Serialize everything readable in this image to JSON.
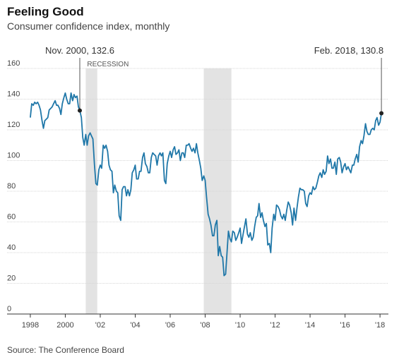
{
  "chart_data": {
    "type": "line",
    "title": "Feeling Good",
    "subtitle": "Consumer confidence index, monthly",
    "source": "Source: The Conference Board",
    "recession_label": "RECESSION",
    "recessions": [
      [
        2001.17,
        2001.83
      ],
      [
        2007.92,
        2009.5
      ]
    ],
    "color": "#1f77a8",
    "x": [
      1998.0,
      1998.08,
      1998.17,
      1998.25,
      1998.33,
      1998.42,
      1998.5,
      1998.58,
      1998.67,
      1998.75,
      1998.83,
      1998.92,
      1999.0,
      1999.08,
      1999.17,
      1999.25,
      1999.33,
      1999.42,
      1999.5,
      1999.58,
      1999.67,
      1999.75,
      1999.83,
      1999.92,
      2000.0,
      2000.08,
      2000.17,
      2000.25,
      2000.33,
      2000.42,
      2000.5,
      2000.58,
      2000.67,
      2000.75,
      2000.83,
      2000.92,
      2001.0,
      2001.08,
      2001.17,
      2001.25,
      2001.33,
      2001.42,
      2001.5,
      2001.58,
      2001.67,
      2001.75,
      2001.83,
      2001.92,
      2002.0,
      2002.08,
      2002.17,
      2002.25,
      2002.33,
      2002.42,
      2002.5,
      2002.58,
      2002.67,
      2002.75,
      2002.83,
      2002.92,
      2003.0,
      2003.08,
      2003.17,
      2003.25,
      2003.33,
      2003.42,
      2003.5,
      2003.58,
      2003.67,
      2003.75,
      2003.83,
      2003.92,
      2004.0,
      2004.08,
      2004.17,
      2004.25,
      2004.33,
      2004.42,
      2004.5,
      2004.58,
      2004.67,
      2004.75,
      2004.83,
      2004.92,
      2005.0,
      2005.08,
      2005.17,
      2005.25,
      2005.33,
      2005.42,
      2005.5,
      2005.58,
      2005.67,
      2005.75,
      2005.83,
      2005.92,
      2006.0,
      2006.08,
      2006.17,
      2006.25,
      2006.33,
      2006.42,
      2006.5,
      2006.58,
      2006.67,
      2006.75,
      2006.83,
      2006.92,
      2007.0,
      2007.08,
      2007.17,
      2007.25,
      2007.33,
      2007.42,
      2007.5,
      2007.58,
      2007.67,
      2007.75,
      2007.83,
      2007.92,
      2008.0,
      2008.08,
      2008.17,
      2008.25,
      2008.33,
      2008.42,
      2008.5,
      2008.58,
      2008.67,
      2008.75,
      2008.83,
      2008.92,
      2009.0,
      2009.08,
      2009.17,
      2009.25,
      2009.33,
      2009.42,
      2009.5,
      2009.58,
      2009.67,
      2009.75,
      2009.83,
      2009.92,
      2010.0,
      2010.08,
      2010.17,
      2010.25,
      2010.33,
      2010.42,
      2010.5,
      2010.58,
      2010.67,
      2010.75,
      2010.83,
      2010.92,
      2011.0,
      2011.08,
      2011.17,
      2011.25,
      2011.33,
      2011.42,
      2011.5,
      2011.58,
      2011.67,
      2011.75,
      2011.83,
      2011.92,
      2012.0,
      2012.08,
      2012.17,
      2012.25,
      2012.33,
      2012.42,
      2012.5,
      2012.58,
      2012.67,
      2012.75,
      2012.83,
      2012.92,
      2013.0,
      2013.08,
      2013.17,
      2013.25,
      2013.33,
      2013.42,
      2013.5,
      2013.58,
      2013.67,
      2013.75,
      2013.83,
      2013.92,
      2014.0,
      2014.08,
      2014.17,
      2014.25,
      2014.33,
      2014.42,
      2014.5,
      2014.58,
      2014.67,
      2014.75,
      2014.83,
      2014.92,
      2015.0,
      2015.08,
      2015.17,
      2015.25,
      2015.33,
      2015.42,
      2015.5,
      2015.58,
      2015.67,
      2015.75,
      2015.83,
      2015.92,
      2016.0,
      2016.08,
      2016.17,
      2016.25,
      2016.33,
      2016.42,
      2016.5,
      2016.58,
      2016.67,
      2016.75,
      2016.83,
      2016.92,
      2017.0,
      2017.08,
      2017.17,
      2017.25,
      2017.33,
      2017.42,
      2017.5,
      2017.58,
      2017.67,
      2017.75,
      2017.83,
      2017.92,
      2018.0,
      2018.08
    ],
    "values": [
      128,
      137,
      136,
      138,
      137,
      138,
      136,
      133,
      126,
      121,
      126,
      127,
      128,
      133,
      134,
      135,
      137,
      139,
      136,
      136,
      134,
      130,
      137,
      141,
      144,
      140,
      137,
      137,
      144,
      139,
      143,
      141,
      142,
      135,
      132.6,
      128,
      115,
      110,
      117,
      110,
      116,
      118,
      116,
      114,
      97,
      85,
      84,
      94,
      97,
      95,
      110,
      108,
      110,
      106,
      97,
      94,
      93,
      79,
      84,
      80,
      79,
      64,
      61,
      81,
      83,
      83,
      77,
      81,
      77,
      81,
      92,
      94,
      97,
      88,
      88,
      93,
      93,
      102,
      105,
      98,
      96,
      92,
      92,
      102,
      105,
      104,
      103,
      97,
      103,
      105,
      103,
      105,
      87,
      85,
      98,
      103,
      106,
      102,
      107,
      109,
      104,
      105,
      107,
      100,
      105,
      105,
      102,
      110,
      110,
      111,
      108,
      106,
      108,
      105,
      111,
      105,
      100,
      95,
      87,
      90,
      87,
      76,
      65,
      62,
      58,
      51,
      51,
      58,
      61,
      38,
      44,
      38,
      37,
      25,
      26,
      40,
      54,
      49,
      47,
      54,
      53,
      48,
      50,
      53,
      56,
      46,
      52,
      57,
      62,
      52,
      50,
      53,
      48,
      50,
      57,
      63,
      64,
      72,
      63,
      66,
      61,
      57,
      59,
      45,
      46,
      40,
      56,
      65,
      61,
      71,
      70,
      68,
      64,
      62,
      65,
      61,
      68,
      73,
      71,
      66,
      58,
      69,
      61,
      69,
      76,
      82,
      81,
      81,
      80,
      72,
      70,
      77,
      79,
      78,
      83,
      81,
      82,
      86,
      90,
      92,
      89,
      94,
      91,
      93,
      103,
      98,
      101,
      95,
      95,
      99,
      91,
      101,
      102,
      99,
      92,
      96,
      98,
      94,
      96,
      94,
      92,
      97,
      97,
      101,
      104,
      99,
      109,
      113,
      111,
      116,
      124,
      119,
      117,
      117,
      120,
      121,
      120,
      126,
      128,
      123,
      125,
      130.8
    ],
    "annotations": [
      {
        "text": "Nov. 2000, 132.6",
        "x": 2000.83,
        "y": 132.6,
        "align": "middle"
      },
      {
        "text": "Feb. 2018, 130.8",
        "x": 2018.08,
        "y": 130.8,
        "align": "end"
      }
    ],
    "xlim": [
      1996.67,
      2018.48
    ],
    "xticks": [
      {
        "value": 1998,
        "label": "1998"
      },
      {
        "value": 2000,
        "label": "2000"
      },
      {
        "value": 2002,
        "label": "'02"
      },
      {
        "value": 2004,
        "label": "'04"
      },
      {
        "value": 2006,
        "label": "'06"
      },
      {
        "value": 2008,
        "label": "'08"
      },
      {
        "value": 2010,
        "label": "'10"
      },
      {
        "value": 2012,
        "label": "'12"
      },
      {
        "value": 2014,
        "label": "'14"
      },
      {
        "value": 2016,
        "label": "'16"
      },
      {
        "value": 2018,
        "label": "'18"
      }
    ],
    "ylim": [
      0,
      160
    ],
    "yticks": [
      0,
      20,
      40,
      60,
      80,
      100,
      120,
      140,
      160
    ],
    "grid": true
  }
}
